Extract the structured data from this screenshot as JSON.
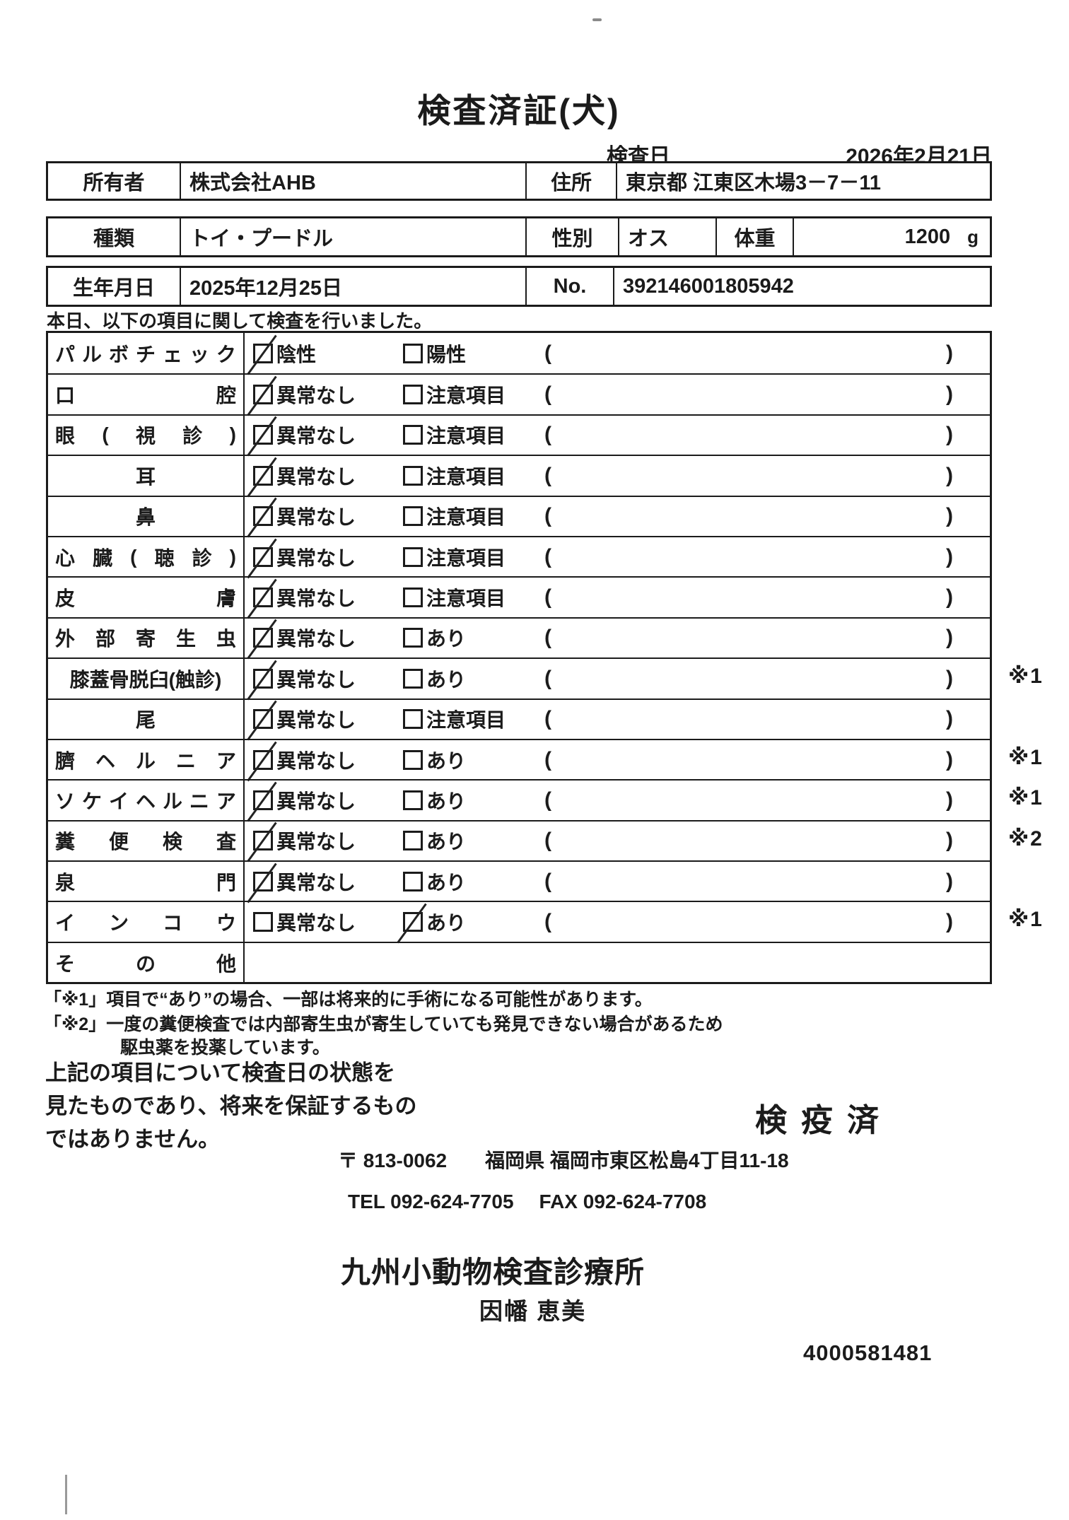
{
  "page": {
    "title": "検査済証(犬)"
  },
  "inspection": {
    "date_label": "検査日",
    "date_value": "2026年2月21日"
  },
  "owner": {
    "label": "所有者",
    "value": "株式会社AHB",
    "address_label": "住所",
    "address_value": "東京都 江東区木場3－7－11"
  },
  "animal": {
    "type_label": "種類",
    "type_value": "トイ・プードル",
    "sex_label": "性別",
    "sex_value": "オス",
    "weight_label": "体重",
    "weight_value": "1200",
    "weight_unit": "g",
    "birth_label": "生年月日",
    "birth_value": "2025年12月25日",
    "no_label": "No.",
    "no_value": "392146001805942"
  },
  "intro": "本日、以下の項目に関して検査を行いました。",
  "checklist": {
    "paren_open": "(",
    "paren_close": ")",
    "rows": [
      {
        "item": "パ ル ボ チ ェ ッ ク",
        "opt1": "陰性",
        "opt1_checked": true,
        "opt2": "陽性",
        "opt2_checked": false,
        "note": ""
      },
      {
        "item": "口 腔",
        "opt1": "異常なし",
        "opt1_checked": true,
        "opt2": "注意項目",
        "opt2_checked": false,
        "note": ""
      },
      {
        "item": "眼 ( 視 診 )",
        "opt1": "異常なし",
        "opt1_checked": true,
        "opt2": "注意項目",
        "opt2_checked": false,
        "note": ""
      },
      {
        "item": "耳",
        "opt1": "異常なし",
        "opt1_checked": true,
        "opt2": "注意項目",
        "opt2_checked": false,
        "note": ""
      },
      {
        "item": "鼻",
        "opt1": "異常なし",
        "opt1_checked": true,
        "opt2": "注意項目",
        "opt2_checked": false,
        "note": ""
      },
      {
        "item": "心 臓 ( 聴 診 )",
        "opt1": "異常なし",
        "opt1_checked": true,
        "opt2": "注意項目",
        "opt2_checked": false,
        "note": ""
      },
      {
        "item": "皮 膚",
        "opt1": "異常なし",
        "opt1_checked": true,
        "opt2": "注意項目",
        "opt2_checked": false,
        "note": ""
      },
      {
        "item": "外 部 寄 生 虫",
        "opt1": "異常なし",
        "opt1_checked": true,
        "opt2": "あり",
        "opt2_checked": false,
        "note": ""
      },
      {
        "item": "膝蓋骨脱臼(触診)",
        "opt1": "異常なし",
        "opt1_checked": true,
        "opt2": "あり",
        "opt2_checked": false,
        "note": "※1"
      },
      {
        "item": "尾",
        "opt1": "異常なし",
        "opt1_checked": true,
        "opt2": "注意項目",
        "opt2_checked": false,
        "note": ""
      },
      {
        "item": "臍 ヘ ル ニ ア",
        "opt1": "異常なし",
        "opt1_checked": true,
        "opt2": "あり",
        "opt2_checked": false,
        "note": "※1"
      },
      {
        "item": "ソ ケ イ ヘ ル ニ ア",
        "opt1": "異常なし",
        "opt1_checked": true,
        "opt2": "あり",
        "opt2_checked": false,
        "note": "※1"
      },
      {
        "item": "糞 便 検 査",
        "opt1": "異常なし",
        "opt1_checked": true,
        "opt2": "あり",
        "opt2_checked": false,
        "note": "※2"
      },
      {
        "item": "泉 門",
        "opt1": "異常なし",
        "opt1_checked": true,
        "opt2": "あり",
        "opt2_checked": false,
        "note": ""
      },
      {
        "item": "イ ン コ ウ",
        "opt1": "異常なし",
        "opt1_checked": false,
        "opt2": "あり",
        "opt2_checked": true,
        "note": "※1"
      },
      {
        "item": "そ の 他",
        "opt1": null,
        "opt1_checked": false,
        "opt2": null,
        "opt2_checked": false,
        "note": ""
      }
    ]
  },
  "footnotes": [
    "「※1」項目で“あり”の場合、一部は将来的に手術になる可能性があります。",
    "「※2」一度の糞便検査では内部寄生虫が寄生していても発見できない場合があるため",
    "駆虫薬を投薬しています。"
  ],
  "disclaimer": [
    "上記の項目について検査日の状態を",
    "見たものであり、将来を保証するもの",
    "ではありません。"
  ],
  "stamp": "検疫済",
  "clinic": {
    "postal": "〒 813-0062",
    "address": "福岡県 福岡市東区松島4丁目11-18",
    "tel": "TEL 092-624-7705",
    "fax": "FAX 092-624-7708",
    "name": "九州小動物検査診療所",
    "vet": "因幡 恵美",
    "serial": "4000581481"
  }
}
